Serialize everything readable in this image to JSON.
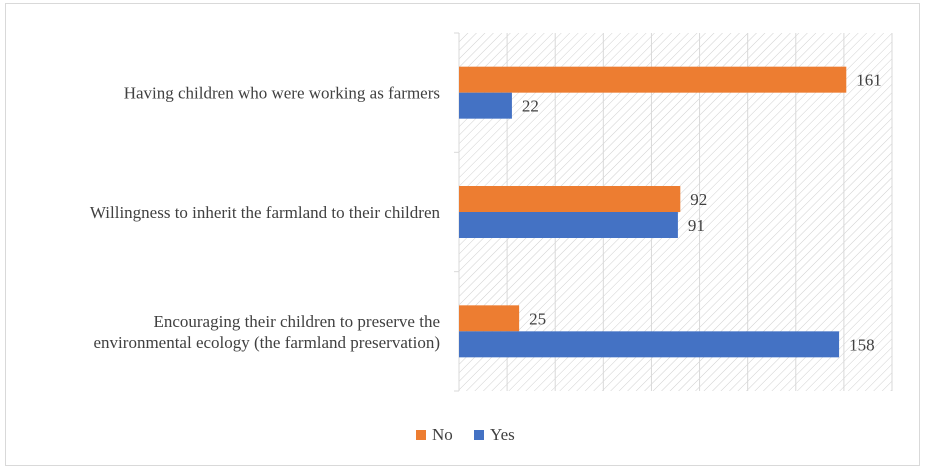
{
  "chart_data": {
    "type": "bar",
    "orientation": "horizontal",
    "title": "",
    "xlabel": "",
    "ylabel": "",
    "categories": [
      [
        "Encouraging their children to preserve the",
        "environmental ecology (the farmland preservation)"
      ],
      [
        "Willingness to inherit the farmland to their children"
      ],
      [
        "Having children who were working as farmers"
      ]
    ],
    "series": [
      {
        "name": "No",
        "color": "#ed7d31",
        "values": [
          25,
          92,
          161
        ]
      },
      {
        "name": "Yes",
        "color": "#4472c4",
        "values": [
          158,
          91,
          22
        ]
      }
    ],
    "xlim": [
      0,
      180
    ],
    "grid": true,
    "legend_position": "bottom"
  }
}
